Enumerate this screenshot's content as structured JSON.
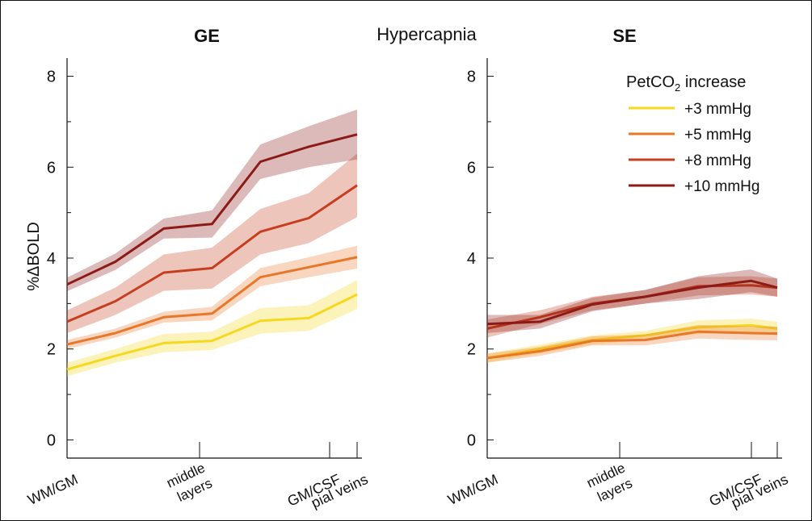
{
  "figure_title": "Hypercapnia",
  "ylabel": "%ΔBOLD",
  "legend": {
    "title_main": "PetCO",
    "title_sub": "2",
    "title_rest": " increase",
    "entries": [
      "+3 mmHg",
      "+5 mmHg",
      "+8 mmHg",
      "+10 mmHg"
    ]
  },
  "colors": {
    "+3 mmHg": "#f5d81f",
    "+5 mmHg": "#e9772a",
    "+8 mmHg": "#c63e1f",
    "+10 mmHg": "#8c1a16"
  },
  "chart_data": [
    {
      "type": "line",
      "title": "GE",
      "ylim": [
        -0.4,
        8.4
      ],
      "yticks": [
        0,
        2,
        4,
        6,
        8
      ],
      "x": [
        0,
        0.5,
        1,
        1.5,
        2,
        2.5,
        3
      ],
      "xticks": [
        {
          "x": 0,
          "label": "WM/GM"
        },
        {
          "x": 1.25,
          "label": "middle\nlayers"
        },
        {
          "x": 2.5,
          "label": "GM/CSF"
        },
        {
          "x": 3,
          "label": "pial veins"
        }
      ],
      "series": [
        {
          "name": "+3 mmHg",
          "values": [
            1.55,
            1.85,
            2.13,
            2.18,
            2.62,
            2.68,
            3.2
          ],
          "ci": [
            0.15,
            0.15,
            0.2,
            0.2,
            0.28,
            0.28,
            0.32
          ]
        },
        {
          "name": "+5 mmHg",
          "values": [
            2.1,
            2.35,
            2.7,
            2.78,
            3.58,
            3.8,
            4.02
          ],
          "ci": [
            0.1,
            0.1,
            0.12,
            0.15,
            0.2,
            0.22,
            0.25
          ]
        },
        {
          "name": "+8 mmHg",
          "values": [
            2.6,
            3.05,
            3.68,
            3.78,
            4.58,
            4.88,
            5.6
          ],
          "ci": [
            0.25,
            0.3,
            0.4,
            0.45,
            0.5,
            0.55,
            0.7
          ]
        },
        {
          "name": "+10 mmHg",
          "values": [
            3.42,
            3.92,
            4.65,
            4.75,
            6.12,
            6.45,
            6.72
          ],
          "ci": [
            0.15,
            0.18,
            0.22,
            0.3,
            0.38,
            0.45,
            0.55
          ]
        }
      ]
    },
    {
      "type": "line",
      "title": "SE",
      "ylim": [
        -0.4,
        8.4
      ],
      "yticks": [
        0,
        2,
        4,
        6,
        8
      ],
      "x": [
        0,
        0.5,
        1,
        1.5,
        2,
        2.5,
        2.75
      ],
      "xticks": [
        {
          "x": 0,
          "label": "WM/GM"
        },
        {
          "x": 1.25,
          "label": "middle\nlayers"
        },
        {
          "x": 2.5,
          "label": "GM/CSF"
        },
        {
          "x": 2.75,
          "label": "pial veins"
        }
      ],
      "series": [
        {
          "name": "+3 mmHg",
          "values": [
            1.8,
            2.0,
            2.2,
            2.3,
            2.48,
            2.52,
            2.45
          ],
          "ci": [
            0.1,
            0.1,
            0.1,
            0.1,
            0.15,
            0.15,
            0.15
          ]
        },
        {
          "name": "+5 mmHg",
          "values": [
            1.8,
            1.95,
            2.18,
            2.2,
            2.38,
            2.35,
            2.34
          ],
          "ci": [
            0.1,
            0.1,
            0.1,
            0.12,
            0.15,
            0.15,
            0.15
          ]
        },
        {
          "name": "+8 mmHg",
          "values": [
            2.45,
            2.7,
            3.0,
            3.15,
            3.38,
            3.4,
            3.35
          ],
          "ci": [
            0.2,
            0.15,
            0.15,
            0.15,
            0.2,
            0.2,
            0.2
          ]
        },
        {
          "name": "+10 mmHg",
          "values": [
            2.55,
            2.6,
            2.98,
            3.15,
            3.35,
            3.5,
            3.35
          ],
          "ci": [
            0.2,
            0.15,
            0.15,
            0.15,
            0.25,
            0.25,
            0.2
          ]
        }
      ]
    }
  ]
}
